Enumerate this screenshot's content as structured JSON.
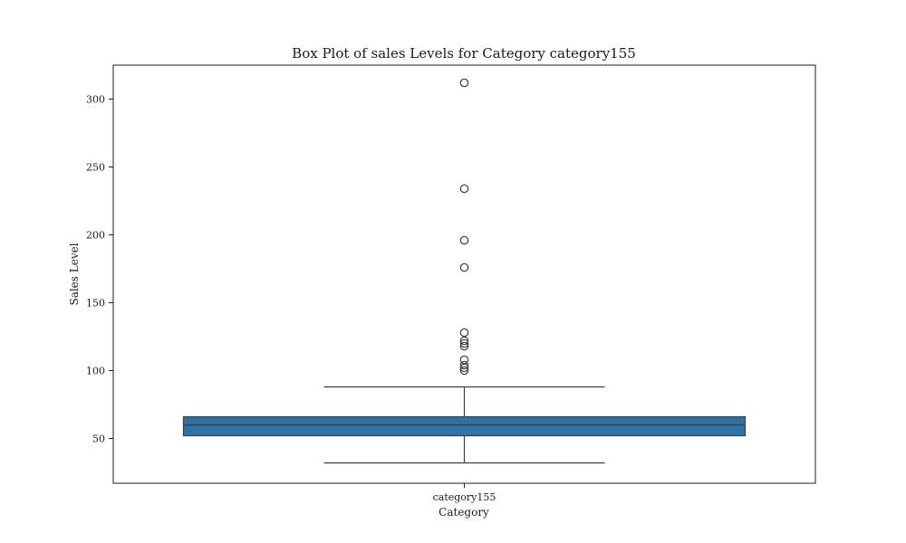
{
  "chart_data": {
    "type": "box",
    "title": "Box Plot of sales Levels for Category category155",
    "xlabel": "Category",
    "ylabel": "Sales Level",
    "categories": [
      "category155"
    ],
    "ylim": [
      17,
      325
    ],
    "yticks": [
      50,
      100,
      150,
      200,
      250,
      300
    ],
    "grid": false,
    "box_color": "#2f72a6",
    "line_color": "#3d3d3d",
    "boxes": [
      {
        "category": "category155",
        "whisker_low": 32,
        "q1": 52,
        "median": 60,
        "q3": 66,
        "whisker_high": 88,
        "outliers": [
          100,
          102,
          104,
          108,
          118,
          120,
          122,
          128,
          176,
          196,
          234,
          312
        ]
      }
    ]
  }
}
